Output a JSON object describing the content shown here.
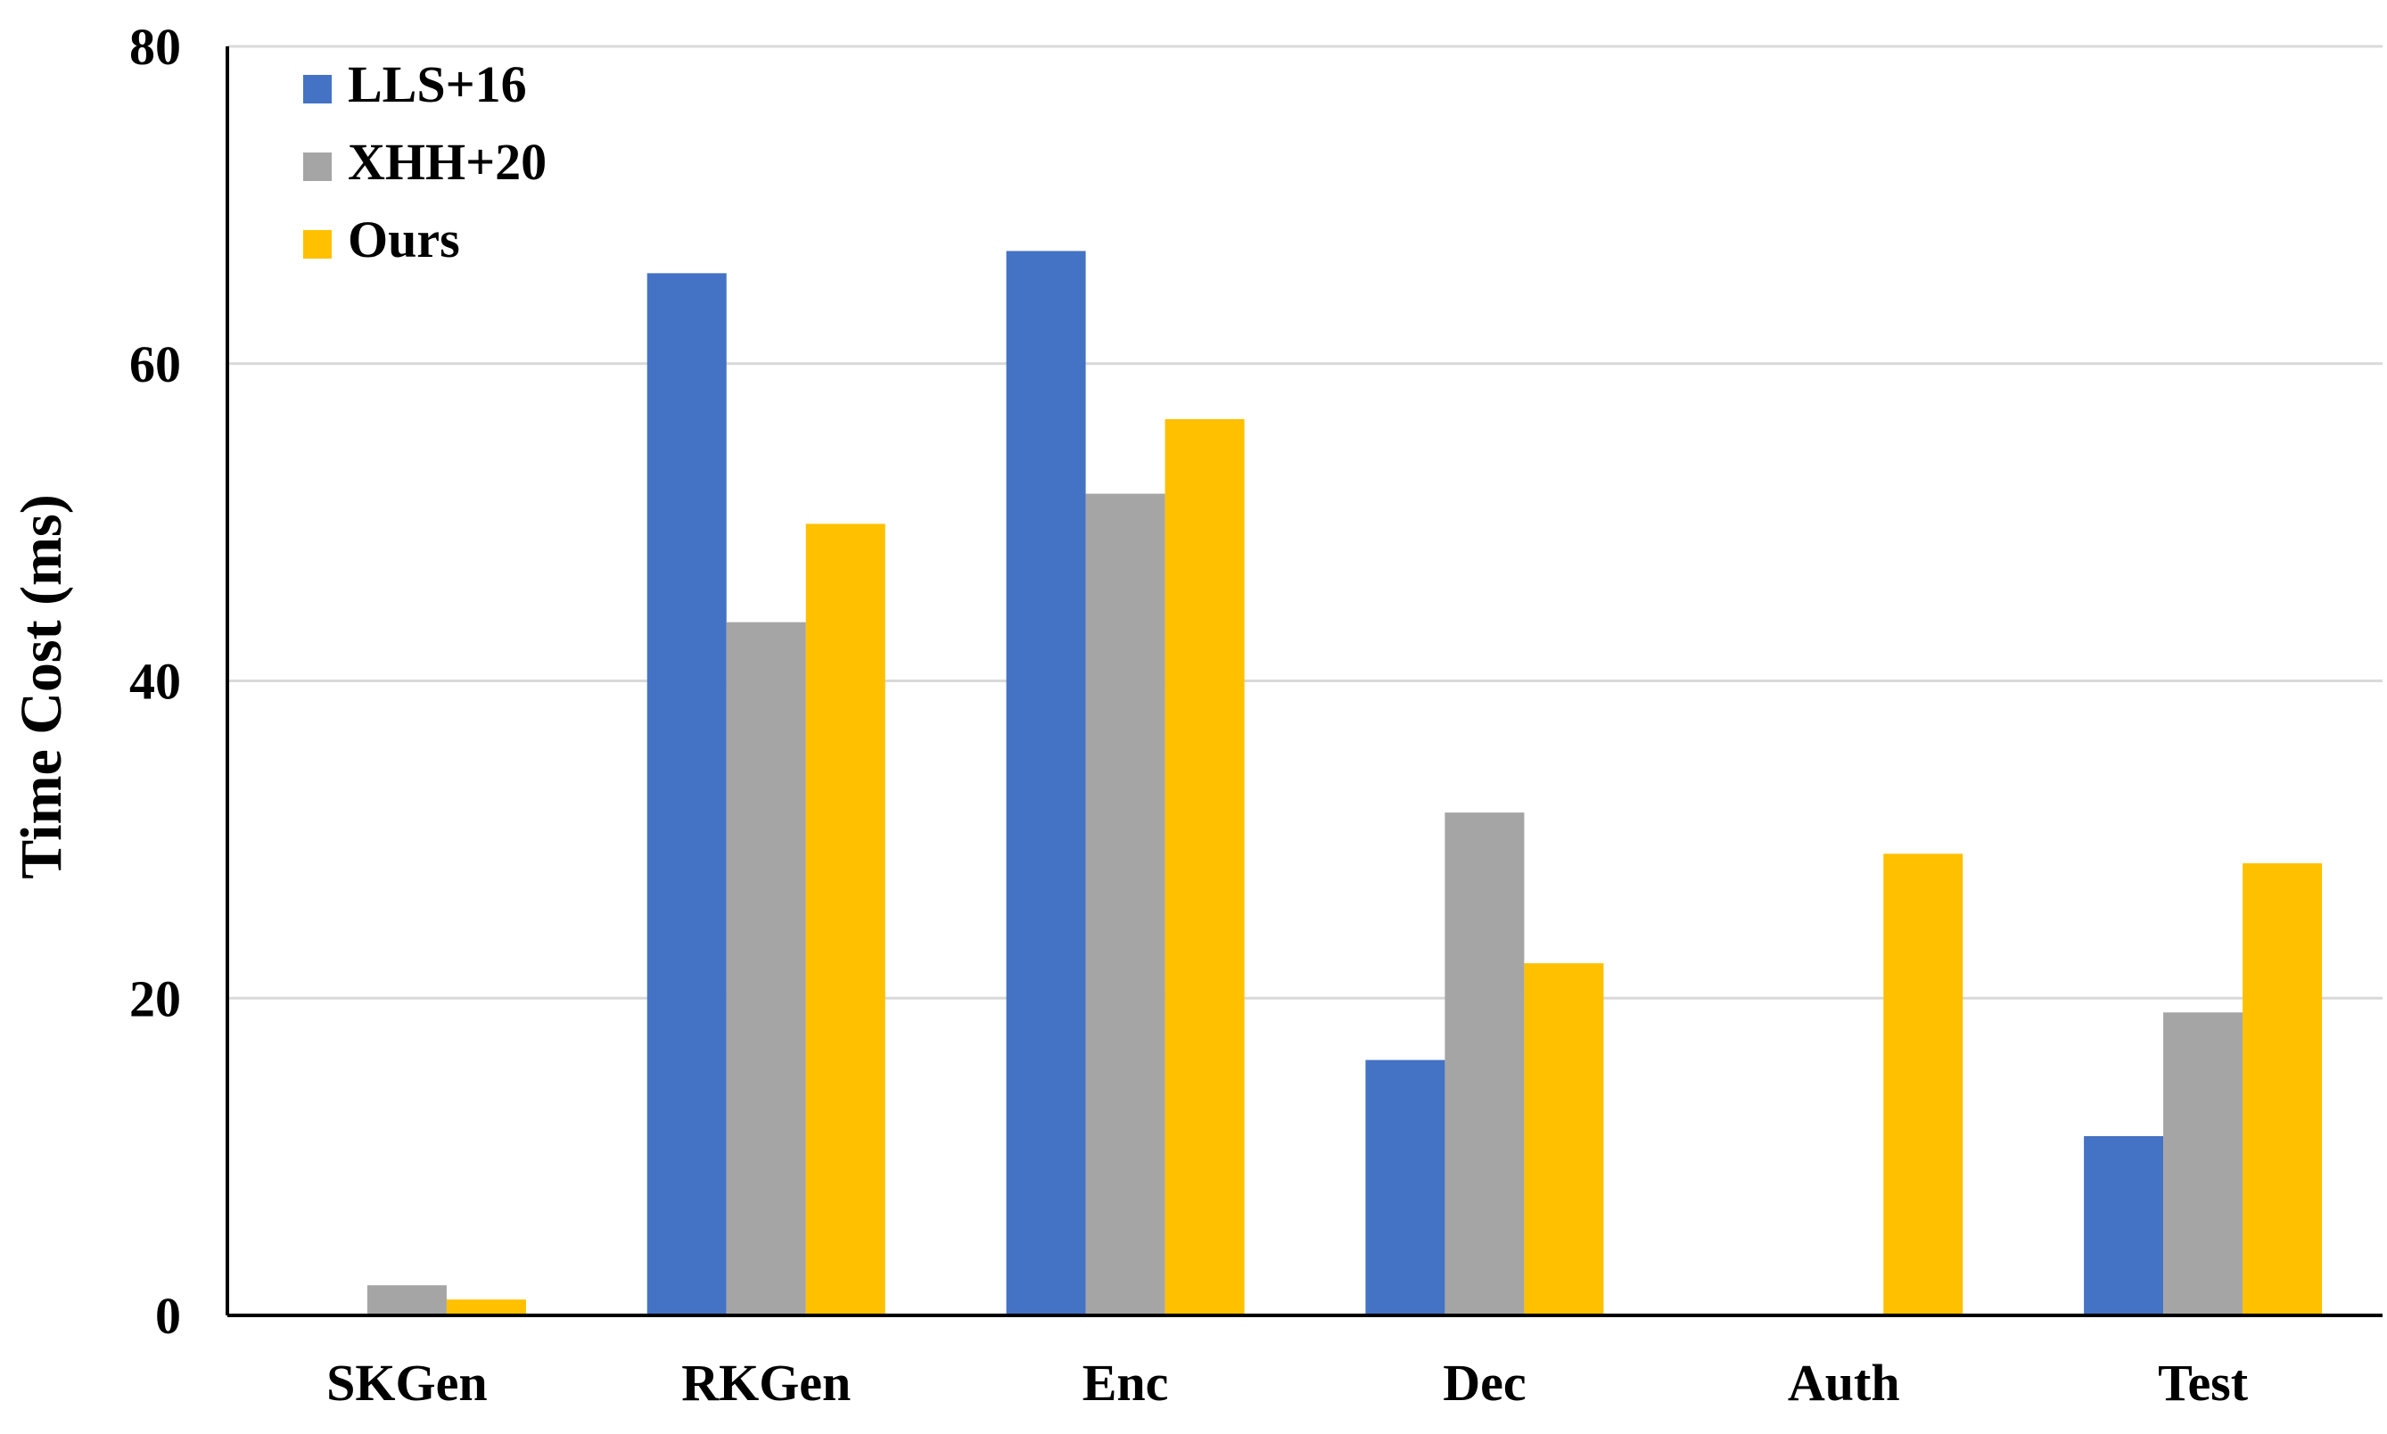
{
  "chart_data": {
    "type": "bar",
    "title": "",
    "xlabel": "",
    "ylabel": "Time Cost (ms)",
    "ylim": [
      0,
      80
    ],
    "yticks": [
      0,
      20,
      40,
      60,
      80
    ],
    "grid": true,
    "legend_position": "top-left",
    "categories": [
      "SKGen",
      "RKGen",
      "Enc",
      "Dec",
      "Auth",
      "Test"
    ],
    "series": [
      {
        "name": "LLS+16",
        "color": "#4472C4",
        "values": [
          0,
          65.7,
          67.1,
          16.1,
          0,
          11.3
        ]
      },
      {
        "name": "XHH+20",
        "color": "#A5A5A5",
        "values": [
          1.9,
          43.7,
          51.8,
          31.7,
          0,
          19.1
        ]
      },
      {
        "name": "Ours",
        "color": "#FFC000",
        "values": [
          1.0,
          49.9,
          56.5,
          22.2,
          29.1,
          28.5
        ]
      }
    ]
  }
}
